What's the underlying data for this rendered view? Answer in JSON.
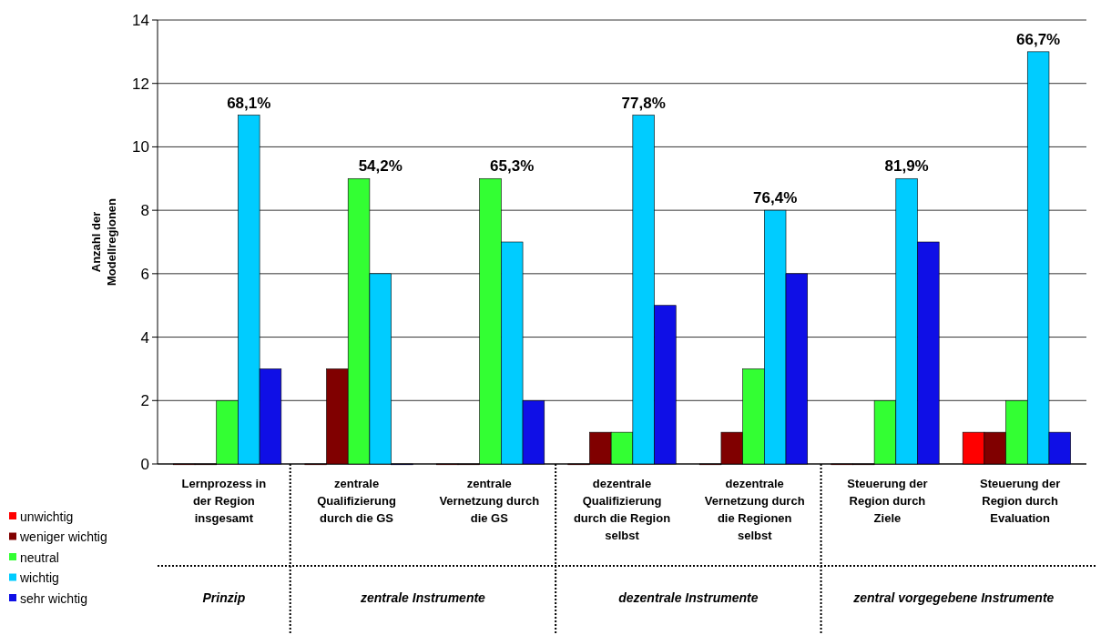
{
  "chart_data": {
    "type": "bar",
    "ylabel": "Anzahl der Modellregionen",
    "categories": [
      "Lernprozess in der Region insgesamt",
      "zentrale Qualifizierung durch die GS",
      "zentrale Vernetzung durch die GS",
      "dezentrale Qualifizierung durch die Region selbst",
      "dezentrale Vernetzung durch die Regionen selbst",
      "Steuerung der Region durch Ziele",
      "Steuerung der Region durch Evaluation"
    ],
    "series": [
      {
        "name": "unwichtig",
        "color": "#ff0000",
        "values": [
          0,
          0,
          0,
          0,
          0,
          0,
          1
        ]
      },
      {
        "name": "weniger wichtig",
        "color": "#800000",
        "values": [
          0,
          3,
          0,
          1,
          1,
          0,
          1
        ]
      },
      {
        "name": "neutral",
        "color": "#33ff33",
        "values": [
          2,
          9,
          9,
          1,
          3,
          2,
          2
        ]
      },
      {
        "name": "wichtig",
        "color": "#00ccff",
        "values": [
          11,
          6,
          7,
          11,
          8,
          9,
          13
        ]
      },
      {
        "name": "sehr wichtig",
        "color": "#0f0fe6",
        "values": [
          3,
          0,
          2,
          5,
          6,
          7,
          1
        ]
      }
    ],
    "ylim": [
      0,
      14
    ],
    "yticks": [
      0,
      2,
      4,
      6,
      8,
      10,
      12,
      14
    ],
    "grid": "y",
    "legend": "bottom left",
    "annotations": [
      "68,1%",
      "54,2%",
      "65,3%",
      "77,8%",
      "76,4%",
      "81,9%",
      "66,7%",
      "Prinzip",
      "zentrale Instrumente",
      "dezentrale Instrumente",
      "zentral vorgegebene Instrumente"
    ]
  }
}
